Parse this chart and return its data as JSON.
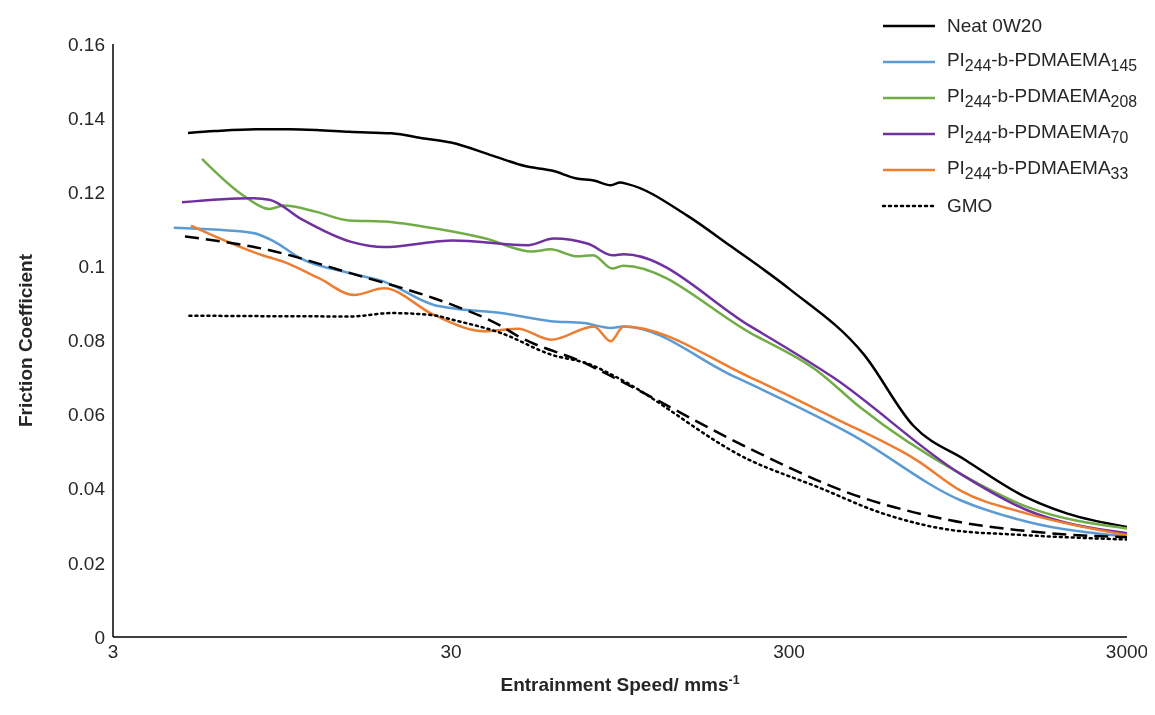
{
  "chart_data": {
    "type": "line",
    "xlabel": "Entrainment Speed/ mms$^{-1}$",
    "ylabel": "Friction Coefficient",
    "log": "x",
    "xlim": [
      3,
      3000
    ],
    "xticks": [
      3,
      30,
      300,
      3000
    ],
    "ylim": [
      0,
      0.16
    ],
    "yticks": [
      0,
      0.02,
      0.04,
      0.06,
      0.08,
      0.1,
      0.12,
      0.14,
      0.16
    ],
    "grid": false,
    "legend": "top right",
    "marker": "none",
    "series": [
      {
        "name": "Neat 0W20",
        "color": "#000000",
        "line_style": "solid",
        "x": [
          5,
          6,
          8,
          10,
          12,
          15,
          20,
          25,
          30,
          40,
          50,
          60,
          70,
          80,
          89,
          95,
          100,
          150,
          200,
          300,
          500,
          700,
          1000,
          1500,
          2000,
          3000
        ],
        "values": [
          0.136,
          0.1365,
          0.137,
          0.137,
          0.1368,
          0.1363,
          0.1359,
          0.1345,
          0.1334,
          0.1298,
          0.127,
          0.1258,
          0.1238,
          0.1231,
          0.1219,
          0.1226,
          0.1222,
          0.1137,
          0.1057,
          0.094,
          0.0762,
          0.057,
          0.0477,
          0.0378,
          0.0333,
          0.0297
        ]
      },
      {
        "name": "PI$_{244}$-b-PDMAEMA$_{145}$",
        "color": "#5b9bd5",
        "line_style": "solid",
        "x": [
          4.54,
          7.7,
          9,
          10.8,
          15.2,
          19,
          26.7,
          30.3,
          42.2,
          59.3,
          74.2,
          89,
          97.3,
          205,
          231,
          456,
          965,
          1520,
          3000
        ],
        "values": [
          0.1104,
          0.1091,
          0.1067,
          0.1021,
          0.0981,
          0.0959,
          0.0896,
          0.0887,
          0.0874,
          0.0852,
          0.0847,
          0.0834,
          0.0838,
          0.0704,
          0.0682,
          0.0548,
          0.0369,
          0.0311,
          0.0271
        ]
      },
      {
        "name": "PI$_{244}$-b-PDMAEMA$_{208}$",
        "color": "#70ad47",
        "line_style": "solid",
        "x": [
          5.5,
          7.4,
          8.7,
          9.6,
          12,
          15,
          19,
          27,
          38,
          52,
          59,
          71,
          79,
          90,
          97,
          231,
          364,
          488,
          965,
          1520,
          3000
        ],
        "values": [
          0.129,
          0.1187,
          0.1155,
          0.1164,
          0.1147,
          0.1124,
          0.1121,
          0.1102,
          0.1075,
          0.104,
          0.1046,
          0.1027,
          0.103,
          0.0994,
          0.1002,
          0.082,
          0.0718,
          0.0619,
          0.044,
          0.0351,
          0.0293
        ]
      },
      {
        "name": "PI$_{244}$-b-PDMAEMA$_{70}$",
        "color": "#7030a0",
        "line_style": "solid",
        "x": [
          4.8,
          7.7,
          8.7,
          10.8,
          15.2,
          19,
          26.7,
          30.3,
          50.6,
          60.4,
          76.3,
          90.3,
          97.3,
          231,
          406,
          965,
          1520,
          3000
        ],
        "values": [
          0.1173,
          0.1184,
          0.118,
          0.1128,
          0.1066,
          0.1052,
          0.1066,
          0.107,
          0.1057,
          0.1075,
          0.1061,
          0.103,
          0.1033,
          0.0838,
          0.07,
          0.044,
          0.0342,
          0.028
        ]
      },
      {
        "name": "PI$_{244}$-b-PDMAEMA$_{33}$",
        "color": "#ed7d31",
        "line_style": "solid",
        "x": [
          5.1,
          8.3,
          9.6,
          12.2,
          15.5,
          19,
          26.7,
          37.6,
          47.3,
          59.3,
          79.4,
          89,
          97.3,
          231,
          406,
          719,
          965,
          1520,
          3000
        ],
        "values": [
          0.111,
          0.103,
          0.1012,
          0.0968,
          0.0923,
          0.0941,
          0.0869,
          0.0825,
          0.0832,
          0.0802,
          0.0838,
          0.0798,
          0.0838,
          0.07,
          0.0592,
          0.0476,
          0.0395,
          0.0333,
          0.0275
        ]
      },
      {
        "name": "GMO",
        "color": "#000000",
        "line_style": "dotted",
        "x": [
          5.05,
          15.2,
          20,
          26.7,
          30.3,
          42.2,
          59.3,
          77.6,
          90.9,
          231,
          364,
          570,
          900,
          1420,
          3000
        ],
        "values": [
          0.0867,
          0.0865,
          0.0874,
          0.0868,
          0.0856,
          0.082,
          0.0762,
          0.0735,
          0.0705,
          0.0476,
          0.0405,
          0.0333,
          0.0289,
          0.0276,
          0.0263
        ]
      },
      {
        "color": "#000000",
        "line_style": "dashed",
        "x": [
          4.9,
          8.67,
          15.2,
          26.7,
          30.3,
          42.2,
          47.3,
          74.2,
          93.3,
          231,
          456,
          900,
          1780,
          3000
        ],
        "values": [
          0.1081,
          0.1044,
          0.0981,
          0.0914,
          0.0896,
          0.0839,
          0.0812,
          0.074,
          0.0695,
          0.0507,
          0.0387,
          0.0315,
          0.028,
          0.0269
        ]
      }
    ]
  }
}
